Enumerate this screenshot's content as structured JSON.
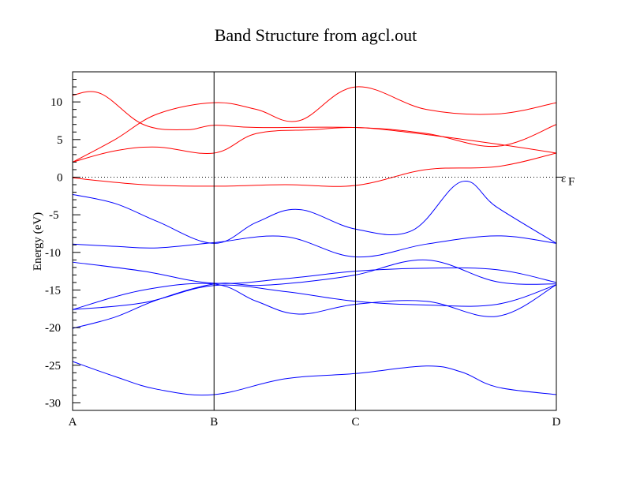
{
  "chart_data": {
    "type": "line",
    "title": "Band Structure from agcl.out",
    "xlabel": "",
    "ylabel": "Energy (eV)",
    "ylim": [
      -31,
      14
    ],
    "yticks": [
      10,
      5,
      0,
      -5,
      -10,
      -15,
      -20,
      -25,
      -30
    ],
    "ytick_labels": [
      "10",
      "5",
      "0",
      "-5",
      "-10",
      "-15",
      "-20",
      "-25",
      "-30"
    ],
    "x_points": [
      {
        "label": "A",
        "x": 0
      },
      {
        "label": "B",
        "x": 1
      },
      {
        "label": "C",
        "x": 2
      },
      {
        "label": "D",
        "x": 3.42
      }
    ],
    "xlim": [
      0,
      3.42
    ],
    "fermi": {
      "label": "ε",
      "subscript": "F",
      "value": 0
    },
    "colors": {
      "conduction": "#ff0000",
      "valence": "#0000ff",
      "axes": "#000000"
    },
    "series": [
      {
        "band": "conduction",
        "x": [
          0,
          0.5,
          1,
          1.5,
          2,
          2.5,
          3,
          3.42
        ],
        "y": [
          -0.1,
          -1.0,
          -1.2,
          -1.0,
          -1.1,
          1.0,
          1.4,
          3.2
        ]
      },
      {
        "band": "conduction",
        "x": [
          0,
          0.3,
          0.6,
          1,
          1.3,
          1.7,
          2,
          2.4,
          3,
          3.42
        ],
        "y": [
          2.0,
          3.5,
          4.0,
          3.2,
          5.8,
          6.3,
          6.6,
          5.9,
          4.4,
          3.2
        ]
      },
      {
        "band": "conduction",
        "x": [
          0,
          0.2,
          0.5,
          0.8,
          1,
          1.3,
          2,
          2.5,
          3,
          3.42
        ],
        "y": [
          10.9,
          11.1,
          7.0,
          6.3,
          6.9,
          6.6,
          6.6,
          5.8,
          4.1,
          7.0
        ]
      },
      {
        "band": "conduction",
        "x": [
          0,
          0.3,
          0.6,
          1,
          1.3,
          1.6,
          2,
          2.5,
          3,
          3.42
        ],
        "y": [
          2.0,
          5.0,
          8.4,
          9.9,
          9.0,
          7.5,
          12.0,
          9.0,
          8.4,
          9.9
        ]
      },
      {
        "band": "valence",
        "x": [
          0,
          0.3,
          0.6,
          1,
          1.3,
          1.6,
          2,
          2.4,
          2.75,
          3,
          3.42
        ],
        "y": [
          -2.3,
          -3.5,
          -5.9,
          -8.8,
          -6.0,
          -4.3,
          -6.9,
          -7.1,
          -0.6,
          -4.0,
          -8.8
        ]
      },
      {
        "band": "valence",
        "x": [
          0,
          0.3,
          0.6,
          1,
          1.5,
          2,
          2.5,
          3,
          3.42
        ],
        "y": [
          -8.9,
          -9.2,
          -9.4,
          -8.7,
          -7.9,
          -10.6,
          -8.9,
          -7.8,
          -8.8
        ]
      },
      {
        "band": "valence",
        "x": [
          0,
          0.5,
          1,
          1.5,
          2,
          2.5,
          3,
          3.42
        ],
        "y": [
          -11.3,
          -12.5,
          -14.1,
          -13.5,
          -12.5,
          -12.1,
          -12.3,
          -14.0
        ]
      },
      {
        "band": "valence",
        "x": [
          0,
          0.5,
          1,
          1.5,
          2,
          2.5,
          3,
          3.42
        ],
        "y": [
          -17.6,
          -16.7,
          -14.4,
          -15.2,
          -16.5,
          -17.0,
          -16.9,
          -14.3
        ]
      },
      {
        "band": "valence",
        "x": [
          0,
          0.3,
          0.6,
          1,
          1.3,
          1.6,
          2,
          2.5,
          3,
          3.42
        ],
        "y": [
          -20.1,
          -18.6,
          -16.3,
          -14.2,
          -14.4,
          -14.0,
          -13.0,
          -11.0,
          -13.9,
          -14.2
        ]
      },
      {
        "band": "valence",
        "x": [
          0,
          0.5,
          1,
          1.3,
          1.6,
          2,
          2.5,
          3,
          3.42
        ],
        "y": [
          -17.6,
          -15.0,
          -14.2,
          -16.5,
          -18.2,
          -16.9,
          -16.5,
          -18.5,
          -14.3
        ]
      },
      {
        "band": "valence",
        "x": [
          0,
          0.3,
          0.6,
          1,
          1.5,
          2,
          2.5,
          2.75,
          3,
          3.42
        ],
        "y": [
          -24.5,
          -26.5,
          -28.2,
          -28.9,
          -26.8,
          -26.1,
          -25.1,
          -25.9,
          -27.9,
          -28.9
        ]
      }
    ]
  }
}
